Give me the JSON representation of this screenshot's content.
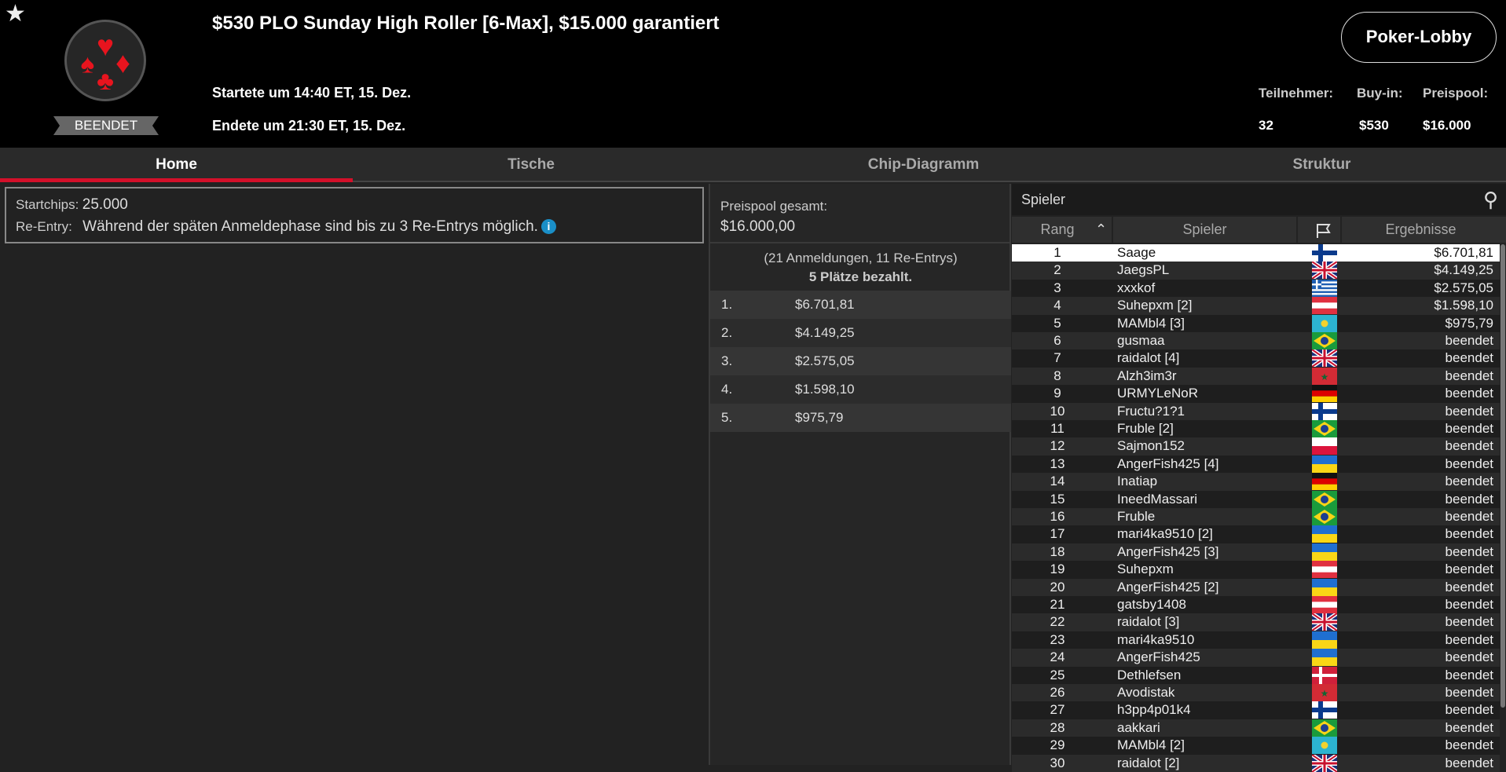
{
  "header": {
    "title": "$530 PLO Sunday High Roller [6-Max], $15.000 garantiert",
    "started": "Startete um 14:40 ET, 15. Dez.",
    "ended": "Endete um 21:30 ET, 15. Dez.",
    "status": "BEENDET",
    "lobby_button": "Poker-Lobby",
    "stats": [
      {
        "label": "Teilnehmer:",
        "value": "32"
      },
      {
        "label": "Buy-in:",
        "value": "$530"
      },
      {
        "label": "Preispool:",
        "value": "$16.000"
      }
    ]
  },
  "tabs": [
    {
      "label": "Home",
      "active": true
    },
    {
      "label": "Tische"
    },
    {
      "label": "Chip-Diagramm"
    },
    {
      "label": "Struktur"
    }
  ],
  "info": {
    "startchips_label": "Startchips:",
    "startchips": "25.000",
    "reentry_label": "Re-Entry:",
    "reentry": "Während der späten Anmeldephase sind bis zu 3 Re-Entrys möglich.",
    "info_icon": "i"
  },
  "prizepool": {
    "label": "Preispool gesamt:",
    "total": "$16.000,00",
    "entries": "(21 Anmeldungen, 11 Re-Entrys)",
    "paid": "5 Plätze bezahlt.",
    "payouts": [
      {
        "place": "1.",
        "amount": "$6.701,81"
      },
      {
        "place": "2.",
        "amount": "$4.149,25"
      },
      {
        "place": "3.",
        "amount": "$2.575,05"
      },
      {
        "place": "4.",
        "amount": "$1.598,10"
      },
      {
        "place": "5.",
        "amount": "$975,79"
      }
    ]
  },
  "players": {
    "title": "Spieler",
    "columns": {
      "rank": "Rang",
      "player": "Spieler",
      "result": "Ergebnisse"
    },
    "rows": [
      {
        "rank": "1",
        "name": "Saage",
        "flag": "fi",
        "result": "$6.701,81"
      },
      {
        "rank": "2",
        "name": "JaegsPL",
        "flag": "gb",
        "result": "$4.149,25"
      },
      {
        "rank": "3",
        "name": "xxxkof",
        "flag": "gr",
        "result": "$2.575,05"
      },
      {
        "rank": "4",
        "name": "Suhepxm [2]",
        "flag": "at",
        "result": "$1.598,10"
      },
      {
        "rank": "5",
        "name": "MAMbl4 [3]",
        "flag": "kz",
        "result": "$975,79"
      },
      {
        "rank": "6",
        "name": "gusmaa",
        "flag": "br",
        "result": "beendet"
      },
      {
        "rank": "7",
        "name": "raidalot [4]",
        "flag": "gb",
        "result": "beendet"
      },
      {
        "rank": "8",
        "name": "Alzh3im3r",
        "flag": "ma",
        "result": "beendet"
      },
      {
        "rank": "9",
        "name": "URMYLeNoR",
        "flag": "de",
        "result": "beendet"
      },
      {
        "rank": "10",
        "name": "Fructu?1?1",
        "flag": "fi",
        "result": "beendet"
      },
      {
        "rank": "11",
        "name": "Fruble [2]",
        "flag": "br",
        "result": "beendet"
      },
      {
        "rank": "12",
        "name": "Sajmon152",
        "flag": "pl",
        "result": "beendet"
      },
      {
        "rank": "13",
        "name": "AngerFish425 [4]",
        "flag": "ua",
        "result": "beendet"
      },
      {
        "rank": "14",
        "name": "Inatiap",
        "flag": "de",
        "result": "beendet"
      },
      {
        "rank": "15",
        "name": "IneedMassari",
        "flag": "br",
        "result": "beendet"
      },
      {
        "rank": "16",
        "name": "Fruble",
        "flag": "br",
        "result": "beendet"
      },
      {
        "rank": "17",
        "name": "mari4ka9510 [2]",
        "flag": "ua",
        "result": "beendet"
      },
      {
        "rank": "18",
        "name": "AngerFish425 [3]",
        "flag": "ua",
        "result": "beendet"
      },
      {
        "rank": "19",
        "name": "Suhepxm",
        "flag": "at",
        "result": "beendet"
      },
      {
        "rank": "20",
        "name": "AngerFish425 [2]",
        "flag": "ua",
        "result": "beendet"
      },
      {
        "rank": "21",
        "name": "gatsby1408",
        "flag": "at",
        "result": "beendet"
      },
      {
        "rank": "22",
        "name": "raidalot [3]",
        "flag": "gb",
        "result": "beendet"
      },
      {
        "rank": "23",
        "name": "mari4ka9510",
        "flag": "ua",
        "result": "beendet"
      },
      {
        "rank": "24",
        "name": "AngerFish425",
        "flag": "ua",
        "result": "beendet"
      },
      {
        "rank": "25",
        "name": "Dethlefsen",
        "flag": "dk",
        "result": "beendet"
      },
      {
        "rank": "26",
        "name": "Avodistak",
        "flag": "ma",
        "result": "beendet"
      },
      {
        "rank": "27",
        "name": "h3pp4p01k4",
        "flag": "fi",
        "result": "beendet"
      },
      {
        "rank": "28",
        "name": "aakkari",
        "flag": "br",
        "result": "beendet"
      },
      {
        "rank": "29",
        "name": "MAMbl4 [2]",
        "flag": "kz",
        "result": "beendet"
      },
      {
        "rank": "30",
        "name": "raidalot [2]",
        "flag": "gb",
        "result": "beendet"
      }
    ]
  },
  "colors": {
    "accent": "#d4102a",
    "suit": "#e8141e",
    "info": "#1a8fc8"
  }
}
